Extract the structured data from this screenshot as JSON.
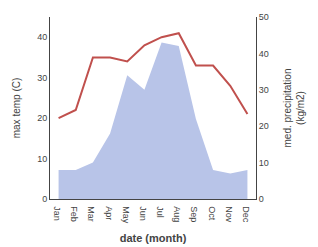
{
  "chart_data": {
    "type": "line",
    "xlabel": "date (month)",
    "ylabel": "max temp (C)",
    "y2label": "med. precipitation\n(kg/m2)",
    "categories": [
      "Jan",
      "Feb",
      "Mar",
      "Apr",
      "May",
      "Jun",
      "Jul",
      "Aug",
      "Sep",
      "Oct",
      "Nov",
      "Dec"
    ],
    "series": [
      {
        "type": "area",
        "axis": "y2",
        "color": "#b8c4e8",
        "values": [
          8,
          8,
          10,
          18,
          34,
          30,
          43,
          42,
          22,
          8,
          7,
          8
        ]
      },
      {
        "type": "line",
        "color": "#c0504d",
        "values": [
          20,
          22,
          35,
          35,
          34,
          38,
          40,
          41,
          33,
          33,
          28,
          21
        ]
      }
    ],
    "ylim": [
      0,
      45
    ],
    "yticks": [
      0,
      10,
      20,
      30,
      40
    ],
    "y2lim": [
      0,
      50
    ],
    "y2ticks": [
      0,
      10,
      20,
      30,
      40,
      50
    ],
    "grid": false
  }
}
